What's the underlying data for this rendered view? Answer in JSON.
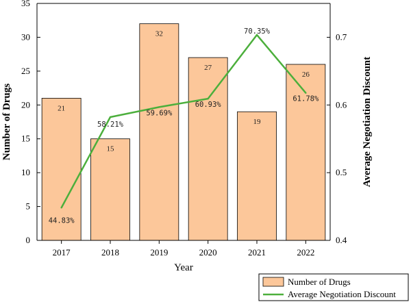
{
  "chart_data": {
    "type": "bar",
    "categories": [
      "2017",
      "2018",
      "2019",
      "2020",
      "2021",
      "2022"
    ],
    "series": [
      {
        "name": "Number of Drugs",
        "type": "bar",
        "axis": "left",
        "values": [
          21,
          15,
          32,
          27,
          19,
          26
        ],
        "labels": [
          "21",
          "15",
          "32",
          "27",
          "19",
          "26"
        ]
      },
      {
        "name": "Average Negotiation Discount",
        "type": "line",
        "axis": "right",
        "values": [
          0.4483,
          0.5821,
          0.5969,
          0.6093,
          0.7035,
          0.6178
        ],
        "labels": [
          "44.83%",
          "58.21%",
          "59.69%",
          "60.93%",
          "70.35%",
          "61.78%"
        ]
      }
    ],
    "xlabel": "Year",
    "ylabel": "Number of Drugs",
    "y2label": "Average Negotiation Discount",
    "ylim": [
      0,
      35
    ],
    "y2lim": [
      0.4,
      0.75
    ],
    "yticks": [
      "0",
      "5",
      "10",
      "15",
      "20",
      "25",
      "30",
      "35"
    ],
    "y2ticks": [
      "0.4",
      "0.5",
      "0.6",
      "0.7"
    ],
    "legend": {
      "position": "bottom-right",
      "entries": [
        "Number of Drugs",
        "Average Negotiation Discount"
      ]
    },
    "colors": {
      "bar_fill": "#fcc79a",
      "bar_stroke": "#000000",
      "line": "#4caf3c"
    },
    "grid": false
  }
}
